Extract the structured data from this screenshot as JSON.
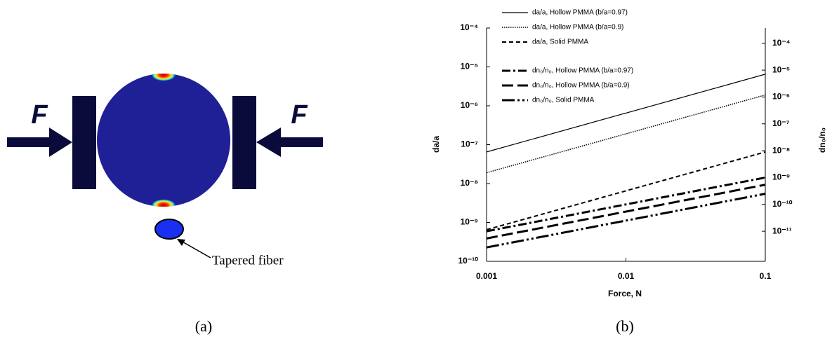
{
  "chart_data": {
    "type": "line",
    "x_label": "Force, N",
    "y_label": "da/a",
    "y2_label": "dn₀/n₀",
    "x": [
      0.001,
      0.1
    ],
    "xscale": "log",
    "yscale": "log",
    "y2scale": "log",
    "xlim": [
      0.001,
      0.1
    ],
    "xticks": [
      0.001,
      0.01,
      0.1
    ],
    "ylim": [
      1e-10,
      0.0001
    ],
    "yticks": [
      {
        "value": 1e-10,
        "label": "10⁻¹⁰"
      },
      {
        "value": 1e-09,
        "label": "10⁻⁹"
      },
      {
        "value": 1e-08,
        "label": "10⁻⁸"
      },
      {
        "value": 1e-07,
        "label": "10⁻⁷"
      },
      {
        "value": 1e-06,
        "label": "10⁻⁶"
      },
      {
        "value": 1e-05,
        "label": "10⁻⁵"
      },
      {
        "value": 0.0001,
        "label": "10⁻⁴"
      }
    ],
    "y2lim": [
      7.6e-13,
      0.00037
    ],
    "y2ticks": [
      {
        "value": 1e-11,
        "label": "10⁻¹¹"
      },
      {
        "value": 1e-10,
        "label": "10⁻¹⁰"
      },
      {
        "value": 1e-09,
        "label": "10⁻⁹"
      },
      {
        "value": 1e-08,
        "label": "10⁻⁸"
      },
      {
        "value": 1e-07,
        "label": "10⁻⁷"
      },
      {
        "value": 1e-06,
        "label": "10⁻⁶"
      },
      {
        "value": 1e-05,
        "label": "10⁻⁵"
      },
      {
        "value": 0.0001,
        "label": "10⁻⁴"
      }
    ],
    "legend": "upper left",
    "grid": false,
    "series": [
      {
        "name": "da/a,  Hollow PMMA (b/a=0.97)",
        "color": "#000000",
        "linestyle": "solid",
        "values": [
          6.5e-08,
          6.5e-06
        ]
      },
      {
        "name": "da/a,  Hollow PMMA (b/a=0.9)",
        "color": "#000000",
        "linestyle": "dotted",
        "values": [
          1.9e-08,
          1.9e-06
        ]
      },
      {
        "name": "da/a,  Solid PMMA",
        "color": "#000000",
        "linestyle": "dashed",
        "values": [
          6.5e-10,
          6.5e-08
        ]
      },
      {
        "name": "dn₀/n₀,  Hollow PMMA (b/a=0.97)",
        "color": "#000000",
        "linestyle": "dashdot",
        "axis": "y2",
        "values": [
          1e-11,
          1e-09
        ]
      },
      {
        "name": "dn₀/n₀,  Hollow PMMA (b/a=0.9)",
        "color": "#000000",
        "linestyle": "longdash",
        "axis": "y2",
        "values": [
          5.4e-12,
          5.4e-10
        ]
      },
      {
        "name": "dn₀/n₀,  Solid PMMA",
        "color": "#000000",
        "linestyle": "longdashdot",
        "axis": "y2",
        "values": [
          2.5e-12,
          2.5e-10
        ]
      }
    ]
  },
  "diagram": {
    "force_labels": [
      "F",
      "F"
    ],
    "fiber_label": "Tapered fiber",
    "panel_labels": [
      "(a)",
      "(b)"
    ]
  }
}
